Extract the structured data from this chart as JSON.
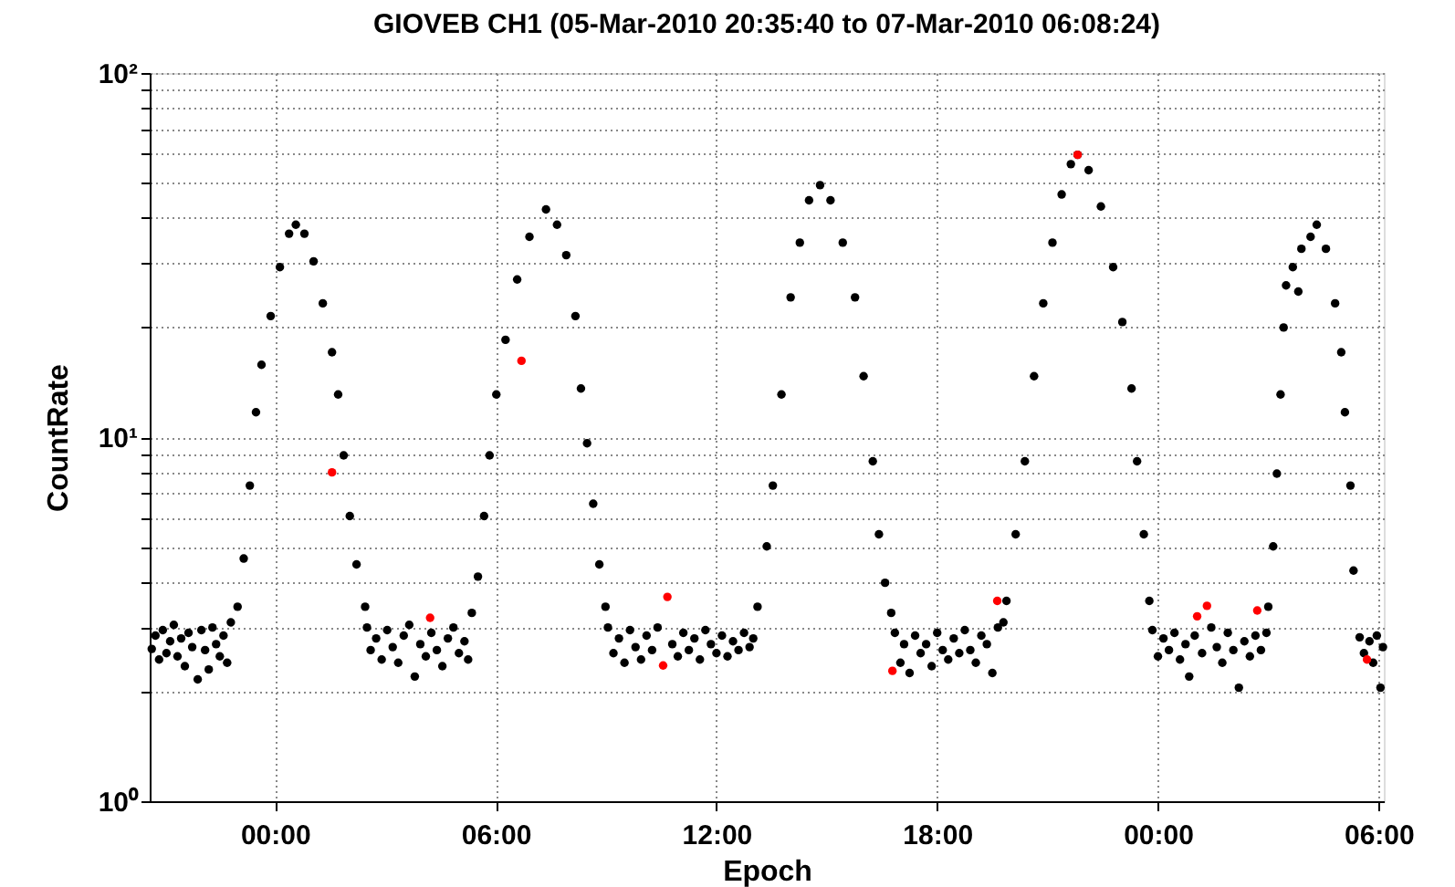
{
  "chart_data": {
    "type": "scatter",
    "title": "GIOVEB CH1 (05-Mar-2010 20:35:40 to 07-Mar-2010 06:08:24)",
    "xlabel": "Epoch",
    "ylabel": "CountRate",
    "xlim": [
      "2010-03-05T20:35:40",
      "2010-03-07T06:08:24"
    ],
    "xticks": [
      {
        "value": "2010-03-06T00:00",
        "label": "00:00"
      },
      {
        "value": "2010-03-06T06:00",
        "label": "06:00"
      },
      {
        "value": "2010-03-06T12:00",
        "label": "12:00"
      },
      {
        "value": "2010-03-06T18:00",
        "label": "18:00"
      },
      {
        "value": "2010-03-07T00:00",
        "label": "00:00"
      },
      {
        "value": "2010-03-07T06:00",
        "label": "06:00"
      }
    ],
    "ylim": [
      1,
      100
    ],
    "log": true,
    "yticks": [
      {
        "value": 1,
        "label": "10⁰"
      },
      {
        "value": 2,
        "label": null
      },
      {
        "value": 3,
        "label": null
      },
      {
        "value": 4,
        "label": null
      },
      {
        "value": 5,
        "label": null
      },
      {
        "value": 6,
        "label": null
      },
      {
        "value": 7,
        "label": null
      },
      {
        "value": 8,
        "label": null
      },
      {
        "value": 9,
        "label": null
      },
      {
        "value": 10,
        "label": "10¹"
      },
      {
        "value": 20,
        "label": null
      },
      {
        "value": 30,
        "label": null
      },
      {
        "value": 40,
        "label": null
      },
      {
        "value": 50,
        "label": null
      },
      {
        "value": 60,
        "label": null
      },
      {
        "value": 70,
        "label": null
      },
      {
        "value": 80,
        "label": null
      },
      {
        "value": 90,
        "label": null
      },
      {
        "value": 100,
        "label": "10²"
      }
    ],
    "grid": true,
    "marker": "circle",
    "series": [
      {
        "color": "#000000",
        "x": [
          "2010-03-05T20:39",
          "2010-03-05T20:45",
          "2010-03-05T20:51",
          "2010-03-05T20:57",
          "2010-03-05T21:03",
          "2010-03-05T21:09",
          "2010-03-05T21:15",
          "2010-03-05T21:21",
          "2010-03-05T21:27",
          "2010-03-05T21:33",
          "2010-03-05T21:39",
          "2010-03-05T21:45",
          "2010-03-05T21:54",
          "2010-03-05T22:00",
          "2010-03-05T22:06",
          "2010-03-05T22:12",
          "2010-03-05T22:18",
          "2010-03-05T22:24",
          "2010-03-05T22:30",
          "2010-03-05T22:36",
          "2010-03-05T22:42",
          "2010-03-05T22:48",
          "2010-03-05T22:59",
          "2010-03-05T23:09",
          "2010-03-05T23:19",
          "2010-03-05T23:29",
          "2010-03-05T23:38",
          "2010-03-05T23:53",
          "2010-03-06T00:08",
          "2010-03-06T00:23",
          "2010-03-06T00:34",
          "2010-03-06T00:48",
          "2010-03-06T01:03",
          "2010-03-06T01:18",
          "2010-03-06T01:33",
          "2010-03-06T01:43",
          "2010-03-06T01:52",
          "2010-03-06T02:02",
          "2010-03-06T02:13",
          "2010-03-06T02:27",
          "2010-03-06T02:30",
          "2010-03-06T02:36",
          "2010-03-06T02:45",
          "2010-03-06T02:54",
          "2010-03-06T03:03",
          "2010-03-06T03:12",
          "2010-03-06T03:21",
          "2010-03-06T03:30",
          "2010-03-06T03:39",
          "2010-03-06T03:48",
          "2010-03-06T03:57",
          "2010-03-06T04:06",
          "2010-03-06T04:15",
          "2010-03-06T04:24",
          "2010-03-06T04:33",
          "2010-03-06T04:42",
          "2010-03-06T04:51",
          "2010-03-06T05:00",
          "2010-03-06T05:09",
          "2010-03-06T05:15",
          "2010-03-06T05:21",
          "2010-03-06T05:31",
          "2010-03-06T05:41",
          "2010-03-06T05:50",
          "2010-03-06T06:01",
          "2010-03-06T06:16",
          "2010-03-06T06:35",
          "2010-03-06T06:55",
          "2010-03-06T07:22",
          "2010-03-06T07:40",
          "2010-03-06T07:55",
          "2010-03-06T08:10",
          "2010-03-06T08:19",
          "2010-03-06T08:29",
          "2010-03-06T08:39",
          "2010-03-06T08:49",
          "2010-03-06T08:59",
          "2010-03-06T09:03",
          "2010-03-06T09:12",
          "2010-03-06T09:21",
          "2010-03-06T09:30",
          "2010-03-06T09:39",
          "2010-03-06T09:48",
          "2010-03-06T09:57",
          "2010-03-06T10:06",
          "2010-03-06T10:15",
          "2010-03-06T10:24",
          "2010-03-06T10:48",
          "2010-03-06T10:57",
          "2010-03-06T11:06",
          "2010-03-06T11:15",
          "2010-03-06T11:24",
          "2010-03-06T11:33",
          "2010-03-06T11:42",
          "2010-03-06T11:51",
          "2010-03-06T12:00",
          "2010-03-06T12:09",
          "2010-03-06T12:18",
          "2010-03-06T12:27",
          "2010-03-06T12:36",
          "2010-03-06T12:45",
          "2010-03-06T12:54",
          "2010-03-06T13:00",
          "2010-03-06T13:07",
          "2010-03-06T13:22",
          "2010-03-06T13:32",
          "2010-03-06T13:46",
          "2010-03-06T14:01",
          "2010-03-06T14:16",
          "2010-03-06T14:31",
          "2010-03-06T14:49",
          "2010-03-06T15:06",
          "2010-03-06T15:26",
          "2010-03-06T15:46",
          "2010-03-06T16:00",
          "2010-03-06T16:15",
          "2010-03-06T16:25",
          "2010-03-06T16:35",
          "2010-03-06T16:45",
          "2010-03-06T16:51",
          "2010-03-06T17:00",
          "2010-03-06T17:06",
          "2010-03-06T17:15",
          "2010-03-06T17:24",
          "2010-03-06T17:33",
          "2010-03-06T17:42",
          "2010-03-06T17:51",
          "2010-03-06T18:00",
          "2010-03-06T18:09",
          "2010-03-06T18:18",
          "2010-03-06T18:27",
          "2010-03-06T18:36",
          "2010-03-06T18:45",
          "2010-03-06T18:54",
          "2010-03-06T19:03",
          "2010-03-06T19:12",
          "2010-03-06T19:21",
          "2010-03-06T19:30",
          "2010-03-06T19:39",
          "2010-03-06T19:48",
          "2010-03-06T19:53",
          "2010-03-06T20:08",
          "2010-03-06T20:23",
          "2010-03-06T20:38",
          "2010-03-06T20:53",
          "2010-03-06T21:08",
          "2010-03-06T21:23",
          "2010-03-06T21:38",
          "2010-03-06T21:49",
          "2010-03-06T22:07",
          "2010-03-06T22:27",
          "2010-03-06T22:47",
          "2010-03-06T23:02",
          "2010-03-06T23:17",
          "2010-03-06T23:26",
          "2010-03-06T23:37",
          "2010-03-06T23:46",
          "2010-03-06T23:51",
          "2010-03-07T00:00",
          "2010-03-07T00:09",
          "2010-03-07T00:18",
          "2010-03-07T00:27",
          "2010-03-07T00:36",
          "2010-03-07T00:45",
          "2010-03-07T00:51",
          "2010-03-07T01:00",
          "2010-03-07T01:12",
          "2010-03-07T01:27",
          "2010-03-07T01:36",
          "2010-03-07T01:45",
          "2010-03-07T01:54",
          "2010-03-07T02:03",
          "2010-03-07T02:12",
          "2010-03-07T02:21",
          "2010-03-07T02:30",
          "2010-03-07T02:39",
          "2010-03-07T02:48",
          "2010-03-07T02:57",
          "2010-03-07T03:00",
          "2010-03-07T03:08",
          "2010-03-07T03:14",
          "2010-03-07T03:20",
          "2010-03-07T03:25",
          "2010-03-07T03:29",
          "2010-03-07T03:40",
          "2010-03-07T03:49",
          "2010-03-07T03:54",
          "2010-03-07T04:09",
          "2010-03-07T04:19",
          "2010-03-07T04:34",
          "2010-03-07T04:49",
          "2010-03-07T04:59",
          "2010-03-07T05:05",
          "2010-03-07T05:14",
          "2010-03-07T05:19",
          "2010-03-07T05:29",
          "2010-03-07T05:36",
          "2010-03-07T05:45",
          "2010-03-07T05:51",
          "2010-03-07T05:57",
          "2010-03-07T06:03",
          "2010-03-07T06:07"
        ],
        "values": [
          2.62,
          2.85,
          2.45,
          2.95,
          2.55,
          2.75,
          3.05,
          2.5,
          2.8,
          2.35,
          2.9,
          2.65,
          2.16,
          2.95,
          2.6,
          2.3,
          3.0,
          2.7,
          2.5,
          2.85,
          2.4,
          3.1,
          3.42,
          4.64,
          7.36,
          11.7,
          15.8,
          21.5,
          29.3,
          36.2,
          38.3,
          36.2,
          30.4,
          23.3,
          17.1,
          13.1,
          8.91,
          6.07,
          4.47,
          3.42,
          3.0,
          2.6,
          2.8,
          2.45,
          2.95,
          2.65,
          2.4,
          2.85,
          3.05,
          2.2,
          2.7,
          2.5,
          2.9,
          2.6,
          2.35,
          2.8,
          3.0,
          2.55,
          2.75,
          2.45,
          3.29,
          4.14,
          6.07,
          8.91,
          13.1,
          18.5,
          27.1,
          35.5,
          42.2,
          38.3,
          31.6,
          21.5,
          13.6,
          9.62,
          6.56,
          4.47,
          3.42,
          3.0,
          2.55,
          2.8,
          2.4,
          2.95,
          2.65,
          2.45,
          2.85,
          2.6,
          3.0,
          2.7,
          2.5,
          2.9,
          2.6,
          2.8,
          2.45,
          2.95,
          2.7,
          2.55,
          2.85,
          2.5,
          2.75,
          2.6,
          2.9,
          2.65,
          2.8,
          3.42,
          5.01,
          7.36,
          13.1,
          24.2,
          34.2,
          44.7,
          49.2,
          44.7,
          34.2,
          24.2,
          14.7,
          8.58,
          5.41,
          3.98,
          3.29,
          2.9,
          2.4,
          2.7,
          2.25,
          2.85,
          2.55,
          2.7,
          2.35,
          2.9,
          2.6,
          2.45,
          2.8,
          2.55,
          2.95,
          2.6,
          2.4,
          2.85,
          2.7,
          2.25,
          3.0,
          3.1,
          3.55,
          5.41,
          8.58,
          14.7,
          23.3,
          34.2,
          46.4,
          56.2,
          59.6,
          54.1,
          43.0,
          29.3,
          20.7,
          13.6,
          8.58,
          5.41,
          3.55,
          2.95,
          2.5,
          2.8,
          2.6,
          2.9,
          2.45,
          2.7,
          2.2,
          2.85,
          2.55,
          3.0,
          2.65,
          2.4,
          2.9,
          2.6,
          2.05,
          2.75,
          2.5,
          2.85,
          2.6,
          2.9,
          3.42,
          5.01,
          7.94,
          13.1,
          20.0,
          26.1,
          29.3,
          25.1,
          32.9,
          35.5,
          38.3,
          32.9,
          23.3,
          17.1,
          11.7,
          7.36,
          4.3,
          2.82,
          2.55,
          2.75,
          2.4,
          2.85,
          2.05,
          2.65
        ]
      },
      {
        "color": "#ff0000",
        "x": [
          "2010-03-06T01:33",
          "2010-03-06T04:13",
          "2010-03-06T06:42",
          "2010-03-06T10:33",
          "2010-03-06T10:40",
          "2010-03-06T16:47",
          "2010-03-06T19:38",
          "2010-03-06T21:49",
          "2010-03-07T01:04",
          "2010-03-07T01:20",
          "2010-03-07T02:42",
          "2010-03-07T05:41"
        ],
        "values": [
          8.0,
          3.19,
          16.2,
          2.36,
          3.64,
          2.28,
          3.55,
          59.6,
          3.22,
          3.44,
          3.34,
          2.45
        ]
      }
    ]
  }
}
